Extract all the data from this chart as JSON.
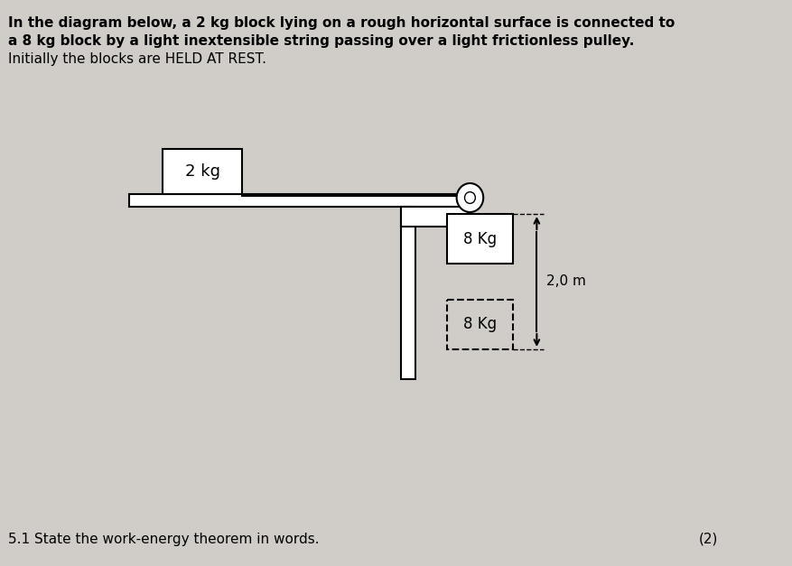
{
  "bg_color": "#d0ccc8",
  "title_lines": [
    "In the diagram below, a 2 kg block lying on a rough horizontal surface is connected to",
    "a 8 kg block by a light inextensible string passing over a light frictionless pulley.",
    "Initially the blocks are HELD AT REST."
  ],
  "block_2kg_label": "2 kg",
  "block_8kg_solid_label": "8 Kg",
  "block_8kg_dashed_label": "8 Kg",
  "distance_label": "2,0 m",
  "question_text": "5.1 State the work-energy theorem in words.",
  "question_marks": "(2)",
  "table_color": "#ffffff",
  "block_color": "#ffffff",
  "string_color": "#000000",
  "pulley_color": "#000000"
}
